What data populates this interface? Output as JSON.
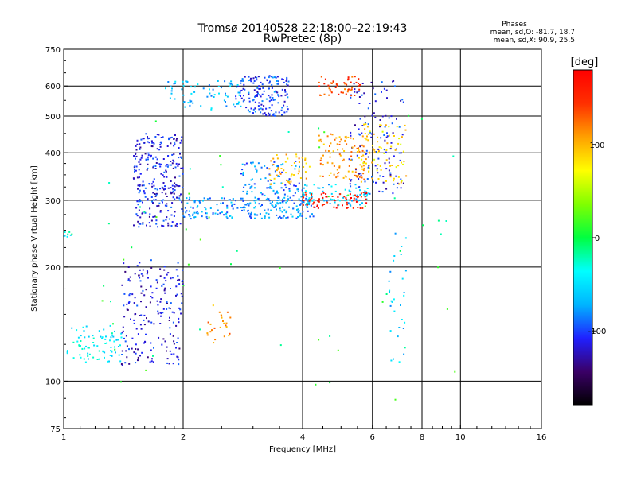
{
  "chart_data": {
    "type": "scatter",
    "title": "Tromsø 20140528 22:18:00–22:19:43",
    "subtitle": "RwPretec (8p)",
    "xlabel": "Frequency [MHz]",
    "ylabel": "Stationary phase Virtual Height [km]",
    "x_scale": "log",
    "y_scale": "log",
    "xlim": [
      1,
      16
    ],
    "ylim": [
      75,
      750
    ],
    "x_ticks": [
      1,
      2,
      4,
      6,
      8,
      10,
      16
    ],
    "y_ticks": [
      75,
      100,
      200,
      300,
      400,
      500,
      600,
      750
    ],
    "x_major_grid": [
      2,
      4,
      6,
      8,
      10
    ],
    "y_major_grid": [
      100,
      200,
      300,
      400,
      500,
      600
    ],
    "grid": true,
    "stats": {
      "heading": "Phases",
      "line_o": "mean, sd,O: -81.7, 18.7",
      "line_x": "mean, sd,X:  90.9, 25.5"
    },
    "colorbar": {
      "label": "[deg]",
      "range": [
        -180,
        180
      ],
      "ticks": [
        100,
        0,
        -100
      ],
      "tick_labels": [
        "100",
        "0",
        "-100"
      ],
      "colormap": [
        "#000000",
        "#3a0066",
        "#2020ff",
        "#00b4ff",
        "#00ffff",
        "#00ff40",
        "#80ff00",
        "#ffff00",
        "#ffa000",
        "#ff3000",
        "#ff0000"
      ]
    },
    "series": [
      {
        "clusters": [
          {
            "x": [
              1.02,
              1.4
            ],
            "y": [
              112,
              140
            ],
            "phase": -45,
            "n": 80
          },
          {
            "x": [
              1.4,
              2.0
            ],
            "y": [
              110,
              210
            ],
            "phase": -115,
            "n": 200
          },
          {
            "x": [
              1.5,
              2.0
            ],
            "y": [
              255,
              450
            ],
            "phase": -110,
            "n": 280
          },
          {
            "x": [
              2.0,
              4.3
            ],
            "y": [
              268,
              305
            ],
            "phase": -80,
            "n": 210
          },
          {
            "x": [
              1.8,
              2.8
            ],
            "y": [
              520,
              620
            ],
            "phase": -65,
            "n": 70
          },
          {
            "x": [
              2.7,
              3.7
            ],
            "y": [
              500,
              640
            ],
            "phase": -100,
            "n": 160
          },
          {
            "x": [
              2.8,
              4.0
            ],
            "y": [
              305,
              380
            ],
            "phase": -85,
            "n": 90
          },
          {
            "x": [
              3.9,
              5.9
            ],
            "y": [
              290,
              330
            ],
            "phase": -60,
            "n": 80
          },
          {
            "x": [
              5.2,
              7.2
            ],
            "y": [
              310,
              620
            ],
            "phase": -110,
            "n": 130
          },
          {
            "x": [
              4.4,
              5.6
            ],
            "y": [
              565,
              640
            ],
            "phase": 140,
            "n": 50
          },
          {
            "x": [
              4.0,
              5.8
            ],
            "y": [
              285,
              315
            ],
            "phase": 165,
            "n": 70
          },
          {
            "x": [
              3.3,
              4.2
            ],
            "y": [
              330,
              400
            ],
            "phase": 100,
            "n": 50
          },
          {
            "x": [
              4.4,
              5.8
            ],
            "y": [
              340,
              450
            ],
            "phase": 110,
            "n": 100
          },
          {
            "x": [
              5.6,
              7.3
            ],
            "y": [
              330,
              480
            ],
            "phase": 85,
            "n": 80
          },
          {
            "x": [
              2.3,
              2.7
            ],
            "y": [
              125,
              160
            ],
            "phase": 110,
            "n": 25
          },
          {
            "x": [
              6.6,
              7.3
            ],
            "y": [
              110,
              260
            ],
            "phase": -60,
            "n": 30
          },
          {
            "x": [
              1.0,
              1.05
            ],
            "y": [
              240,
              248
            ],
            "phase": -30,
            "n": 8
          },
          {
            "x": [
              1.2,
              10.0
            ],
            "y": [
              85,
              560
            ],
            "phase": 0,
            "n": 60
          }
        ]
      }
    ]
  }
}
